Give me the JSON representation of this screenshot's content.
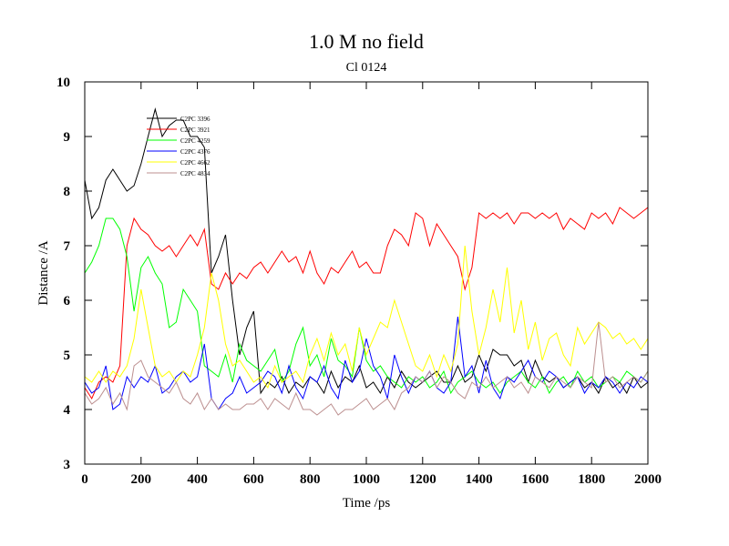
{
  "chart_data": {
    "type": "line",
    "title": "1.0 M no field",
    "subtitle": "Cl 0124",
    "xlabel": "Time /ps",
    "ylabel": "Distance /A",
    "xlim": [
      0,
      2000
    ],
    "ylim": [
      3,
      10
    ],
    "xticks": [
      0,
      200,
      400,
      600,
      800,
      1000,
      1200,
      1400,
      1600,
      1800,
      2000
    ],
    "yticks": [
      3,
      4,
      5,
      6,
      7,
      8,
      9,
      10
    ],
    "legend": "upper left",
    "x": [
      0,
      25,
      50,
      75,
      100,
      125,
      150,
      175,
      200,
      225,
      250,
      275,
      300,
      325,
      350,
      375,
      400,
      425,
      450,
      475,
      500,
      525,
      550,
      575,
      600,
      625,
      650,
      675,
      700,
      725,
      750,
      775,
      800,
      825,
      850,
      875,
      900,
      925,
      950,
      975,
      1000,
      1025,
      1050,
      1075,
      1100,
      1125,
      1150,
      1175,
      1200,
      1225,
      1250,
      1275,
      1300,
      1325,
      1350,
      1375,
      1400,
      1425,
      1450,
      1475,
      1500,
      1525,
      1550,
      1575,
      1600,
      1625,
      1650,
      1675,
      1700,
      1725,
      1750,
      1775,
      1800,
      1825,
      1850,
      1875,
      1900,
      1925,
      1950,
      1975,
      2000
    ],
    "series": [
      {
        "name": "C2PC 3396",
        "color": "#000000",
        "values": [
          8.2,
          7.5,
          7.7,
          8.2,
          8.4,
          8.2,
          8.0,
          8.1,
          8.5,
          9.0,
          9.5,
          9.0,
          9.2,
          9.3,
          9.3,
          9.0,
          9.0,
          8.8,
          6.5,
          6.8,
          7.2,
          6.0,
          5.0,
          5.5,
          5.8,
          4.3,
          4.5,
          4.4,
          4.6,
          4.3,
          4.5,
          4.4,
          4.6,
          4.5,
          4.3,
          4.7,
          4.4,
          4.6,
          4.5,
          4.8,
          4.4,
          4.5,
          4.3,
          4.6,
          4.4,
          4.7,
          4.5,
          4.4,
          4.5,
          4.6,
          4.7,
          4.5,
          4.5,
          4.8,
          4.5,
          4.6,
          5.0,
          4.7,
          5.1,
          5.0,
          5.0,
          4.8,
          4.9,
          4.5,
          4.9,
          4.6,
          4.5,
          4.6,
          4.4,
          4.5,
          4.6,
          4.4,
          4.5,
          4.3,
          4.6,
          4.4,
          4.5,
          4.3,
          4.6,
          4.4,
          4.5
        ]
      },
      {
        "name": "C2PC 3921",
        "color": "#ff0000",
        "values": [
          4.4,
          4.2,
          4.5,
          4.6,
          4.5,
          4.8,
          7.0,
          7.5,
          7.3,
          7.2,
          7.0,
          6.9,
          7.0,
          6.8,
          7.0,
          7.2,
          7.0,
          7.3,
          6.3,
          6.2,
          6.5,
          6.3,
          6.5,
          6.4,
          6.6,
          6.7,
          6.5,
          6.7,
          6.9,
          6.7,
          6.8,
          6.5,
          6.9,
          6.5,
          6.3,
          6.6,
          6.5,
          6.7,
          6.9,
          6.6,
          6.7,
          6.5,
          6.5,
          7.0,
          7.3,
          7.2,
          7.0,
          7.6,
          7.5,
          7.0,
          7.4,
          7.2,
          7.0,
          6.8,
          6.2,
          6.6,
          7.6,
          7.5,
          7.6,
          7.5,
          7.6,
          7.4,
          7.6,
          7.6,
          7.5,
          7.6,
          7.5,
          7.6,
          7.3,
          7.5,
          7.4,
          7.3,
          7.6,
          7.5,
          7.6,
          7.4,
          7.7,
          7.6,
          7.5,
          7.6,
          7.7
        ]
      },
      {
        "name": "C2PC 4259",
        "color": "#00ff00",
        "values": [
          6.5,
          6.7,
          7.0,
          7.5,
          7.5,
          7.3,
          6.8,
          5.8,
          6.6,
          6.8,
          6.5,
          6.3,
          5.5,
          5.6,
          6.2,
          6.0,
          5.8,
          4.8,
          4.7,
          4.6,
          5.0,
          4.5,
          5.2,
          4.9,
          4.8,
          4.7,
          4.9,
          5.1,
          4.5,
          4.7,
          5.2,
          5.5,
          4.8,
          5.0,
          4.6,
          5.3,
          4.9,
          4.8,
          4.6,
          5.5,
          4.9,
          4.7,
          4.8,
          4.6,
          4.5,
          4.4,
          4.6,
          4.5,
          4.6,
          4.4,
          4.5,
          4.7,
          4.3,
          4.5,
          4.6,
          4.7,
          4.5,
          4.4,
          4.5,
          4.3,
          4.5,
          4.6,
          4.7,
          4.5,
          4.4,
          4.6,
          4.3,
          4.5,
          4.6,
          4.4,
          4.7,
          4.5,
          4.6,
          4.4,
          4.5,
          4.6,
          4.5,
          4.7,
          4.6,
          4.5,
          4.7
        ]
      },
      {
        "name": "C2PC 4376",
        "color": "#0000ff",
        "values": [
          4.5,
          4.3,
          4.4,
          4.8,
          4.0,
          4.1,
          4.6,
          4.4,
          4.6,
          4.5,
          4.8,
          4.3,
          4.4,
          4.6,
          4.7,
          4.5,
          4.6,
          5.2,
          4.2,
          4.0,
          4.2,
          4.3,
          4.6,
          4.3,
          4.4,
          4.5,
          4.7,
          4.6,
          4.3,
          4.8,
          4.4,
          4.2,
          4.6,
          4.5,
          4.8,
          4.4,
          4.2,
          4.9,
          4.5,
          4.7,
          5.3,
          4.8,
          4.6,
          4.2,
          5.0,
          4.6,
          4.3,
          4.6,
          4.5,
          4.7,
          4.4,
          4.3,
          4.5,
          5.7,
          4.6,
          4.8,
          4.3,
          4.9,
          4.4,
          4.2,
          4.6,
          4.5,
          4.7,
          4.9,
          4.6,
          4.5,
          4.7,
          4.6,
          4.4,
          4.5,
          4.6,
          4.3,
          4.5,
          4.4,
          4.6,
          4.5,
          4.3,
          4.5,
          4.4,
          4.6,
          4.5
        ]
      },
      {
        "name": "C2PC 4662",
        "color": "#ffff00",
        "values": [
          4.6,
          4.5,
          4.7,
          4.5,
          4.7,
          4.6,
          4.8,
          5.3,
          6.2,
          5.5,
          4.8,
          4.6,
          4.7,
          4.5,
          4.7,
          4.6,
          5.0,
          5.5,
          6.5,
          6.0,
          5.2,
          4.8,
          4.9,
          4.7,
          4.5,
          4.6,
          4.4,
          4.8,
          4.5,
          4.6,
          4.7,
          4.5,
          5.0,
          5.3,
          4.9,
          5.4,
          5.0,
          5.2,
          4.7,
          5.5,
          5.0,
          5.3,
          5.6,
          5.5,
          6.0,
          5.6,
          5.2,
          4.8,
          4.7,
          5.0,
          4.6,
          5.0,
          4.7,
          5.2,
          7.0,
          5.8,
          5.0,
          5.5,
          6.2,
          5.6,
          6.6,
          5.4,
          6.0,
          5.1,
          5.6,
          4.9,
          5.3,
          5.4,
          5.0,
          4.8,
          5.5,
          5.2,
          5.4,
          5.6,
          5.5,
          5.3,
          5.4,
          5.2,
          5.3,
          5.1,
          5.3
        ]
      },
      {
        "name": "C2PC 4834",
        "color": "#bc8f8f",
        "values": [
          4.3,
          4.1,
          4.2,
          4.4,
          4.1,
          4.3,
          4.0,
          4.8,
          4.9,
          4.6,
          4.5,
          4.4,
          4.3,
          4.5,
          4.2,
          4.1,
          4.3,
          4.0,
          4.2,
          4.0,
          4.1,
          4.0,
          4.0,
          4.1,
          4.1,
          4.2,
          4.0,
          4.2,
          4.1,
          4.0,
          4.3,
          4.0,
          4.0,
          3.9,
          4.0,
          4.1,
          3.9,
          4.0,
          4.0,
          4.1,
          4.2,
          4.0,
          4.1,
          4.2,
          4.0,
          4.3,
          4.4,
          4.6,
          4.5,
          4.7,
          4.4,
          4.6,
          4.5,
          4.3,
          4.2,
          4.5,
          4.4,
          4.6,
          4.4,
          4.5,
          4.6,
          4.4,
          4.5,
          4.3,
          4.6,
          4.5,
          4.4,
          4.6,
          4.5,
          4.4,
          4.6,
          4.5,
          4.4,
          5.6,
          4.5,
          4.6,
          4.4,
          4.5,
          4.6,
          4.5,
          4.7
        ]
      }
    ]
  }
}
